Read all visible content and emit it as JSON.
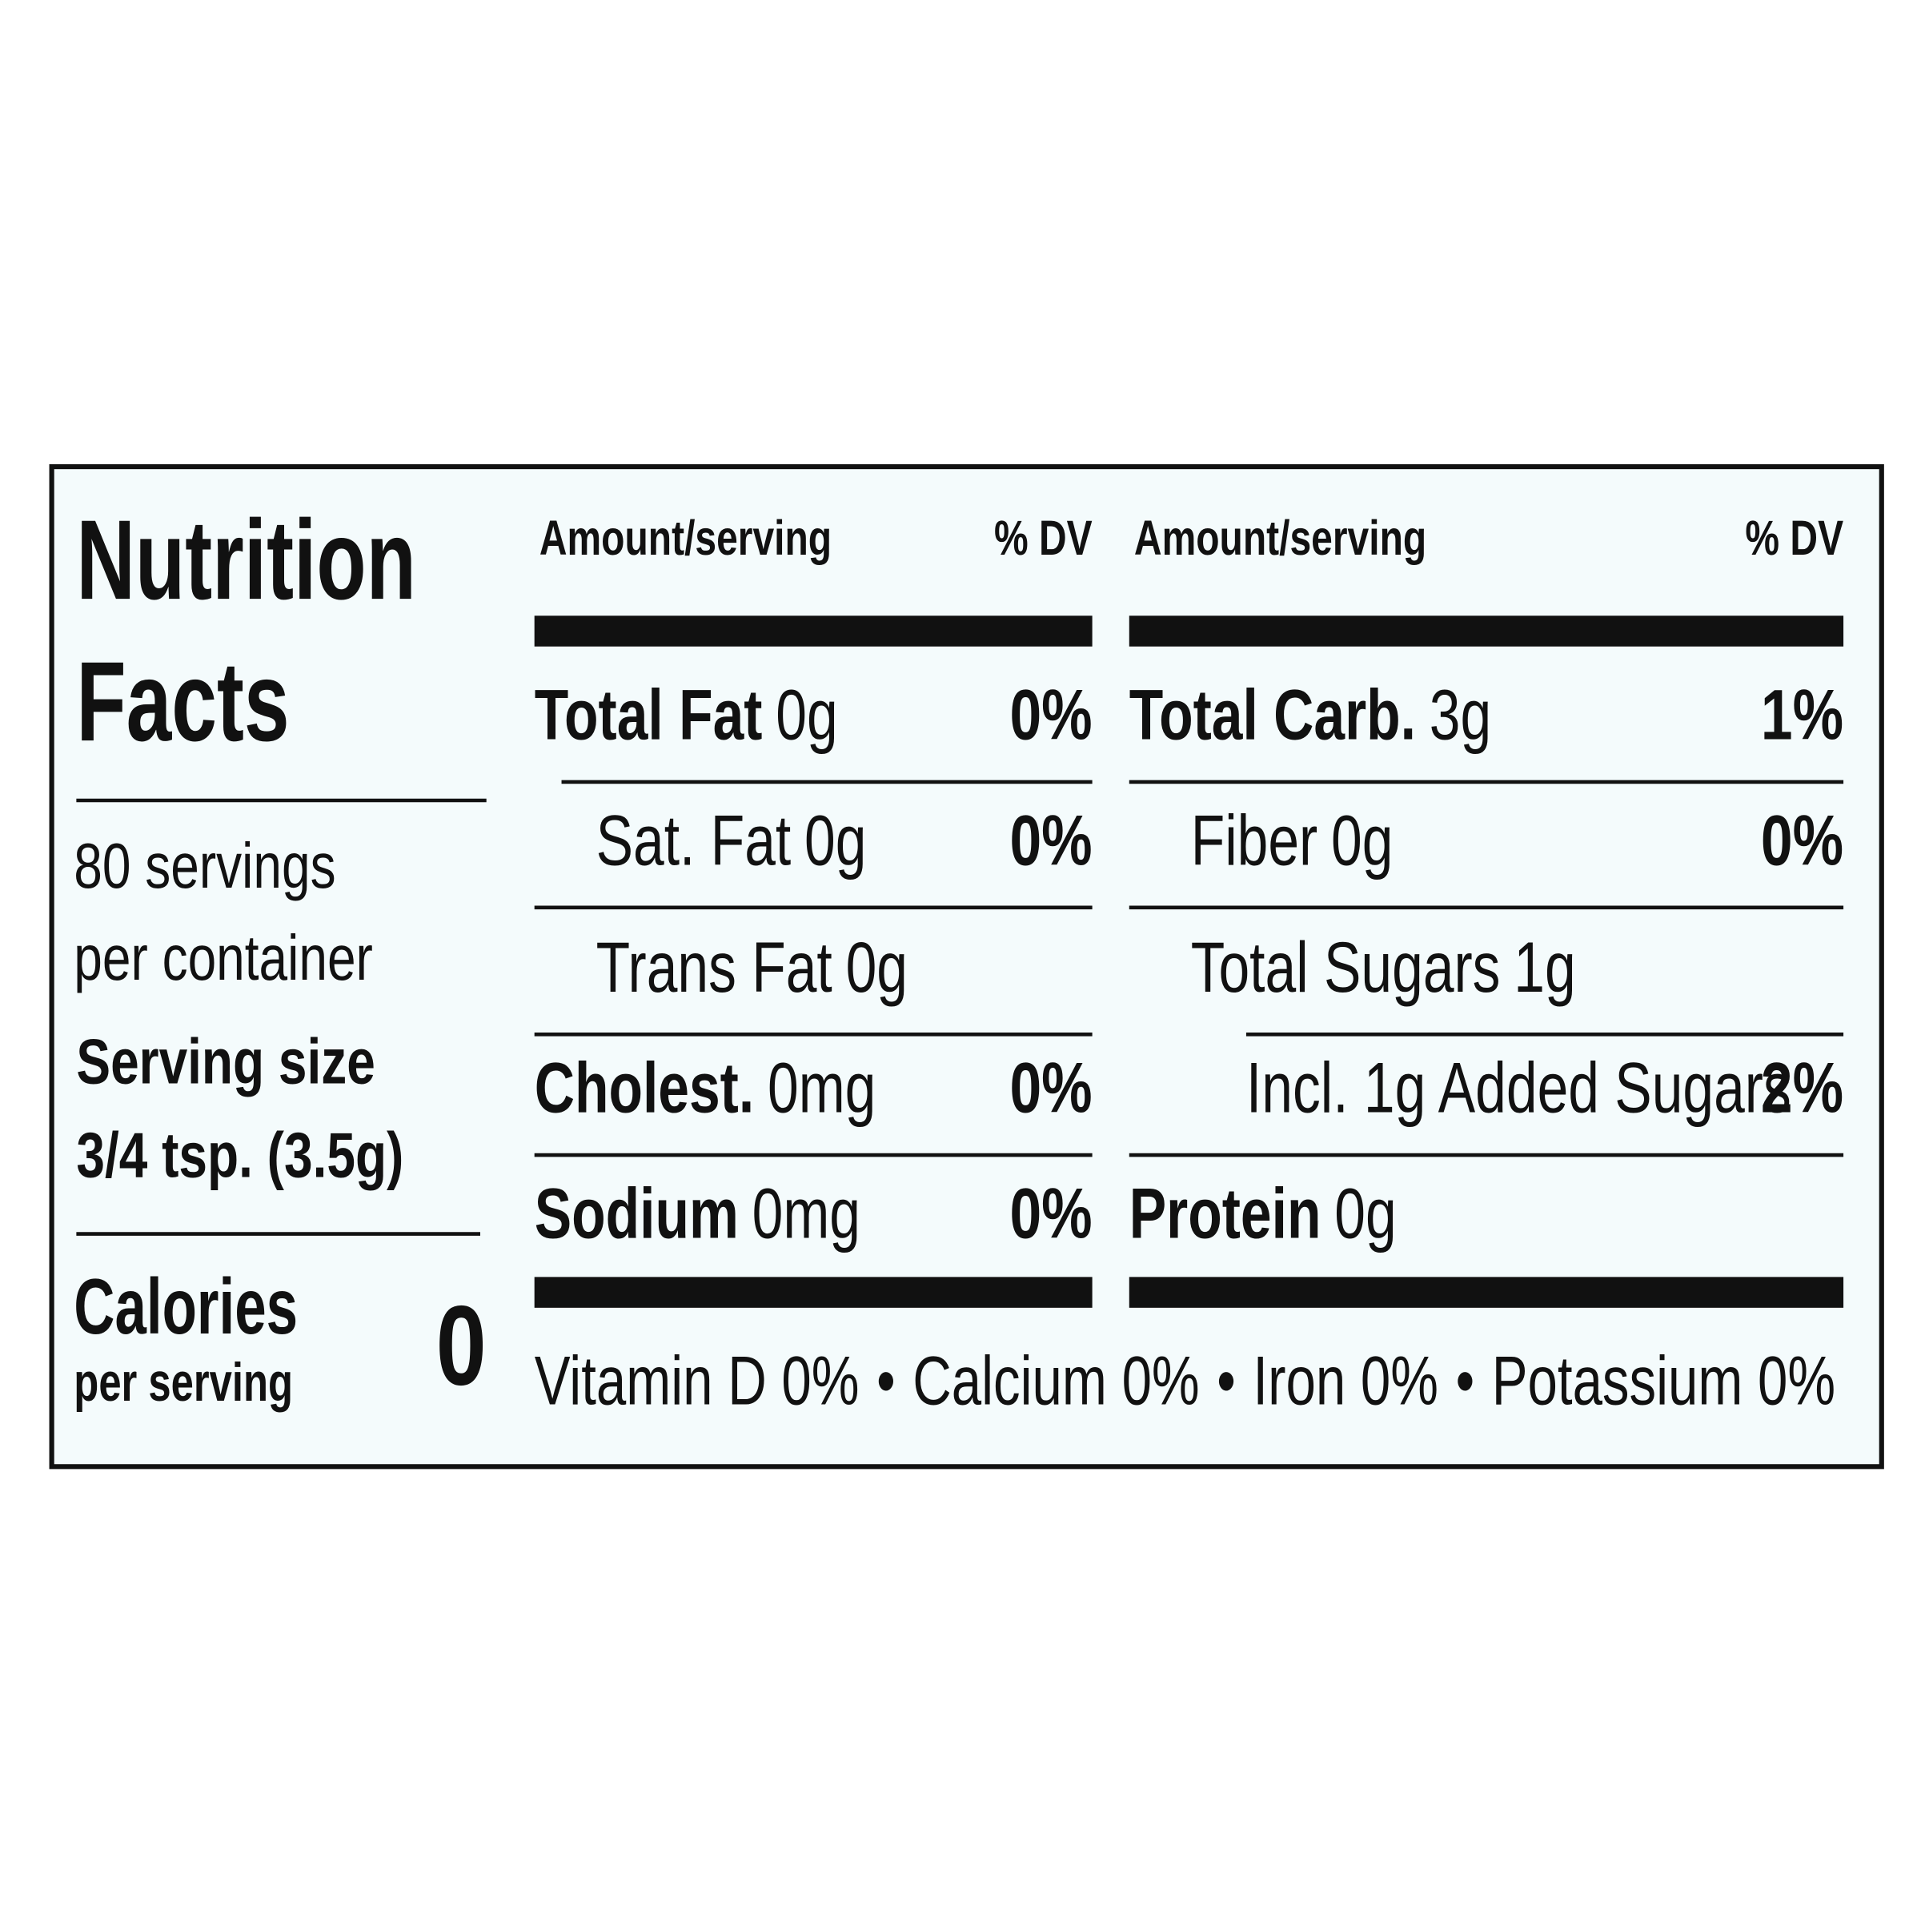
{
  "title": [
    "Nutrition",
    "Facts"
  ],
  "servings": [
    "80 servings",
    "per container"
  ],
  "serving_size": {
    "label": "Serving size",
    "value": "3/4 tsp. (3.5g)"
  },
  "calories": {
    "label": "Calories",
    "sublabel": "per serving",
    "value": "0"
  },
  "columns": [
    {
      "header": {
        "amount": "Amount/serving",
        "dv": "% DV"
      },
      "rows": [
        {
          "name": "Total Fat",
          "amount": "0g",
          "dv": "0%",
          "bold": true,
          "indent": 0
        },
        {
          "name": "Sat. Fat",
          "amount": "0g",
          "dv": "0%",
          "bold": false,
          "indent": 1
        },
        {
          "name": "Trans Fat",
          "amount": "0g",
          "bold": false,
          "indent": 1
        },
        {
          "name": "Cholest.",
          "amount": "0mg",
          "dv": "0%",
          "bold": true,
          "indent": 0
        },
        {
          "name": "Sodium",
          "amount": "0mg",
          "dv": "0%",
          "bold": true,
          "indent": 0
        }
      ]
    },
    {
      "header": {
        "amount": "Amount/serving",
        "dv": "% DV"
      },
      "rows": [
        {
          "name": "Total Carb.",
          "amount": "3g",
          "dv": "1%",
          "bold": true,
          "indent": 0
        },
        {
          "name": "Fiber",
          "amount": "0g",
          "dv": "0%",
          "bold": false,
          "indent": 1
        },
        {
          "name": "Total Sugars",
          "amount": "1g",
          "bold": false,
          "indent": 1
        },
        {
          "name": "Incl. 1g Added Sugars",
          "dv": "2%",
          "bold": false,
          "indent": 2
        },
        {
          "name": "Protein",
          "amount": "0g",
          "bold": true,
          "indent": 0
        }
      ]
    }
  ],
  "vitamins": {
    "items": [
      "Vitamin D 0%",
      "Calcium 0%",
      "Iron 0%",
      "Potassium 0%"
    ],
    "separator": "•"
  }
}
